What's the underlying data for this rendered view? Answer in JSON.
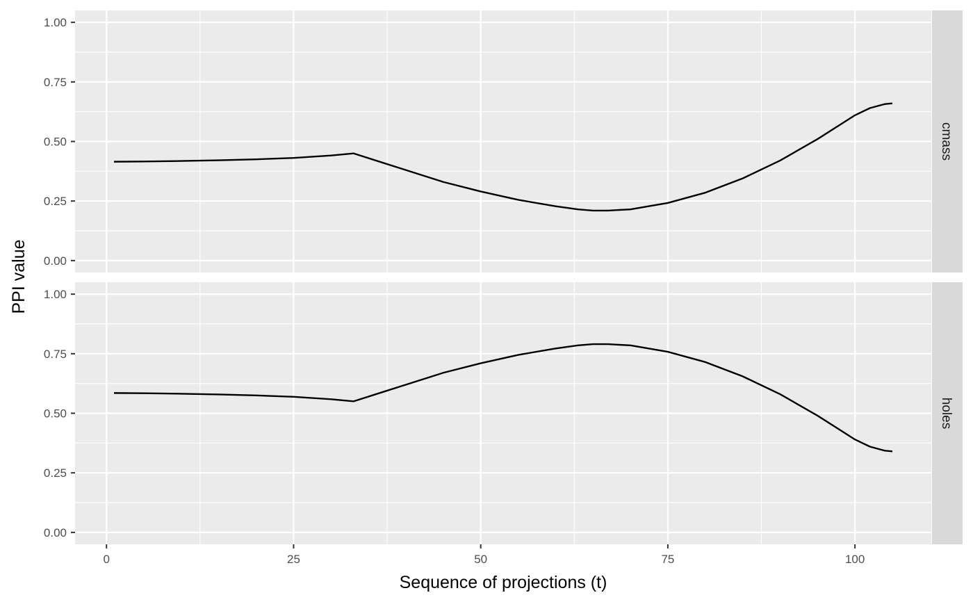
{
  "chart_data": {
    "type": "line",
    "layout": "faceted-vertical",
    "xlabel": "Sequence of projections (t)",
    "ylabel": "PPI value",
    "xlim": [
      -4.2,
      110.2
    ],
    "ylim": [
      -0.05,
      1.05
    ],
    "x_ticks": [
      {
        "value": 0,
        "label": "0"
      },
      {
        "value": 25,
        "label": "25"
      },
      {
        "value": 50,
        "label": "50"
      },
      {
        "value": 75,
        "label": "75"
      },
      {
        "value": 100,
        "label": "100"
      }
    ],
    "x_minor_ticks": [
      12.5,
      37.5,
      62.5,
      87.5
    ],
    "y_ticks": [
      {
        "value": 0.0,
        "label": "0.00"
      },
      {
        "value": 0.25,
        "label": "0.25"
      },
      {
        "value": 0.5,
        "label": "0.50"
      },
      {
        "value": 0.75,
        "label": "0.75"
      },
      {
        "value": 1.0,
        "label": "1.00"
      }
    ],
    "y_minor_ticks": [
      0.125,
      0.375,
      0.625,
      0.875
    ],
    "grid": true,
    "line_color": "#000000",
    "panel_background": "#ebebeb",
    "strip_background": "#d9d9d9",
    "grid_color": "#ffffff",
    "facets": [
      {
        "label": "cmass",
        "points": [
          [
            1,
            0.415
          ],
          [
            5,
            0.416
          ],
          [
            10,
            0.418
          ],
          [
            15,
            0.421
          ],
          [
            20,
            0.425
          ],
          [
            25,
            0.431
          ],
          [
            30,
            0.441
          ],
          [
            33,
            0.45
          ],
          [
            36,
            0.42
          ],
          [
            40,
            0.38
          ],
          [
            45,
            0.33
          ],
          [
            50,
            0.29
          ],
          [
            55,
            0.255
          ],
          [
            60,
            0.228
          ],
          [
            63,
            0.215
          ],
          [
            65,
            0.21
          ],
          [
            67,
            0.21
          ],
          [
            70,
            0.215
          ],
          [
            75,
            0.242
          ],
          [
            80,
            0.285
          ],
          [
            85,
            0.345
          ],
          [
            90,
            0.42
          ],
          [
            95,
            0.51
          ],
          [
            98,
            0.57
          ],
          [
            100,
            0.61
          ],
          [
            102,
            0.64
          ],
          [
            104,
            0.657
          ],
          [
            105,
            0.66
          ]
        ]
      },
      {
        "label": "holes",
        "points": [
          [
            1,
            0.585
          ],
          [
            5,
            0.584
          ],
          [
            10,
            0.582
          ],
          [
            15,
            0.579
          ],
          [
            20,
            0.575
          ],
          [
            25,
            0.569
          ],
          [
            30,
            0.559
          ],
          [
            33,
            0.55
          ],
          [
            36,
            0.58
          ],
          [
            40,
            0.62
          ],
          [
            45,
            0.67
          ],
          [
            50,
            0.71
          ],
          [
            55,
            0.745
          ],
          [
            60,
            0.772
          ],
          [
            63,
            0.785
          ],
          [
            65,
            0.79
          ],
          [
            67,
            0.79
          ],
          [
            70,
            0.785
          ],
          [
            75,
            0.758
          ],
          [
            80,
            0.715
          ],
          [
            85,
            0.655
          ],
          [
            90,
            0.58
          ],
          [
            95,
            0.49
          ],
          [
            98,
            0.43
          ],
          [
            100,
            0.39
          ],
          [
            102,
            0.36
          ],
          [
            104,
            0.343
          ],
          [
            105,
            0.34
          ]
        ]
      }
    ]
  }
}
